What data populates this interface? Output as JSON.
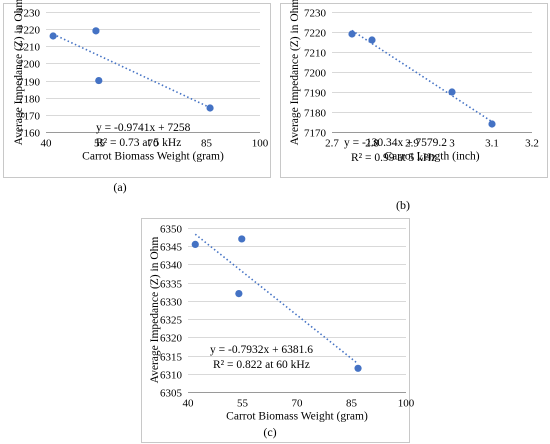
{
  "chart_data": [
    {
      "type": "scatter",
      "panel_label": "(a)",
      "xlabel": "Carrot Biomass Weight (gram)",
      "ylabel": "Average Impedance (Z) in Ohm",
      "xlim": [
        40,
        100
      ],
      "ylim": [
        7160,
        7230
      ],
      "xticks": [
        "40",
        "55",
        "70",
        "85",
        "100"
      ],
      "yticks": [
        "7160",
        "7170",
        "7180",
        "7190",
        "7200",
        "7210",
        "7220",
        "7230"
      ],
      "points": [
        {
          "x": 42.0,
          "y": 7216
        },
        {
          "x": 54.0,
          "y": 7219
        },
        {
          "x": 54.8,
          "y": 7190
        },
        {
          "x": 86.0,
          "y": 7174
        }
      ],
      "trendline": {
        "slope": -0.9741,
        "intercept": 7258
      },
      "equation": "y = -0.9741x + 7258",
      "r2_label": "R² = 0.73 at 5 kHz",
      "grid": "horizontal"
    },
    {
      "type": "scatter",
      "panel_label": "(b)",
      "xlabel": "Carrot Length  (inch)",
      "ylabel": "Average Impedance (Z) in Ohm",
      "xlim": [
        2.7,
        3.2
      ],
      "ylim": [
        7170,
        7230
      ],
      "xticks": [
        "2.7",
        "2.8",
        "2.9",
        "3",
        "3.1",
        "3.2"
      ],
      "yticks": [
        "7170",
        "7180",
        "7190",
        "7200",
        "7210",
        "7220",
        "7230"
      ],
      "points": [
        {
          "x": 2.75,
          "y": 7219
        },
        {
          "x": 2.8,
          "y": 7216
        },
        {
          "x": 3.0,
          "y": 7190
        },
        {
          "x": 3.1,
          "y": 7174
        }
      ],
      "trendline": {
        "slope": -130.34,
        "intercept": 7579.2
      },
      "equation": "y = -130.34x + 7579.2",
      "r2_label": "R² = 0.99 at 5 kHz",
      "grid": "horizontal"
    },
    {
      "type": "scatter",
      "panel_label": "(c)",
      "xlabel": "Carrot Biomass Weight (gram)",
      "ylabel": "Average Impedance (Z) in Ohm",
      "xlim": [
        40,
        100
      ],
      "ylim": [
        6305,
        6350
      ],
      "xticks": [
        "40",
        "55",
        "70",
        "85",
        "100"
      ],
      "yticks": [
        "6305",
        "6310",
        "6315",
        "6320",
        "6325",
        "6330",
        "6335",
        "6340",
        "6345",
        "6350"
      ],
      "points": [
        {
          "x": 42.0,
          "y": 6345.5
        },
        {
          "x": 54.0,
          "y": 6332
        },
        {
          "x": 54.8,
          "y": 6347
        },
        {
          "x": 86.8,
          "y": 6311.5
        }
      ],
      "trendline": {
        "slope": -0.7932,
        "intercept": 6381.6
      },
      "equation": "y = -0.7932x + 6381.6",
      "r2_label": "R² = 0.822 at 60 kHz",
      "grid": "horizontal"
    }
  ]
}
